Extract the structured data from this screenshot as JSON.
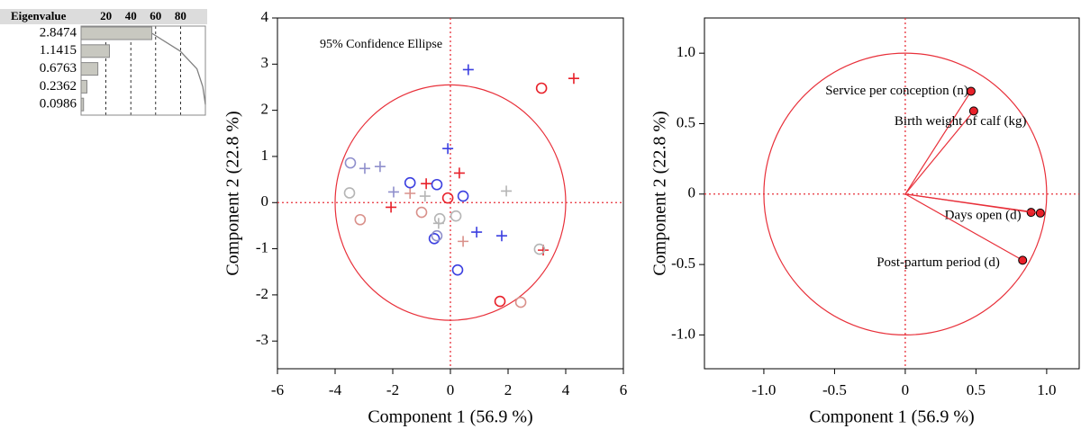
{
  "chart_data": [
    {
      "type": "eigen-bar",
      "header": "Eigenvalue",
      "eigenvalues": [
        2.8474,
        1.1415,
        0.6763,
        0.2362,
        0.0986
      ],
      "values": [
        56.9,
        22.8,
        13.5,
        4.7,
        2.0
      ],
      "cumulative": [
        56.9,
        79.7,
        93.2,
        97.9,
        100
      ],
      "xlim": [
        0,
        100
      ],
      "xticks": [
        20,
        40,
        60,
        80
      ],
      "color": "#c8c8c0",
      "line_color": "#808080"
    },
    {
      "type": "scatter",
      "x_label": "Component 1  (56.9 %)",
      "y_label": "Component 2  (22.8 %)",
      "annotation": "95% Confidence Ellipse",
      "ellipse": [
        4.0,
        2.55
      ],
      "ellipse_color": "#e8303a",
      "xlim": [
        -6,
        6
      ],
      "xticks": [
        -6,
        -4,
        -2,
        0,
        2,
        4,
        6
      ],
      "ylim": [
        -3.6,
        4
      ],
      "yticks": [
        -3,
        -2,
        -1,
        0,
        1,
        2,
        3,
        4
      ],
      "series": [
        {
          "marker": "plus",
          "color": "#e8212a",
          "x": [
            4.28,
            0.31,
            -0.84,
            -2.06,
            3.22
          ],
          "values": [
            2.69,
            0.64,
            0.41,
            -0.1,
            -1.03
          ]
        },
        {
          "marker": "plus",
          "color": "#3b3fe0",
          "x": [
            0.62,
            -0.09,
            0.91,
            1.78
          ],
          "values": [
            2.88,
            1.17,
            -0.64,
            -0.72
          ]
        },
        {
          "marker": "plus",
          "color": "#8f8fcc",
          "x": [
            -2.97,
            -2.44,
            -1.97
          ],
          "values": [
            0.74,
            0.78,
            0.23
          ]
        },
        {
          "marker": "plus",
          "color": "#d9908a",
          "x": [
            -1.4,
            0.44
          ],
          "values": [
            0.2,
            -0.84
          ]
        },
        {
          "marker": "plus",
          "color": "#b5b5b5",
          "x": [
            -0.88,
            1.94,
            -0.41
          ],
          "values": [
            0.14,
            0.25,
            -0.45
          ]
        },
        {
          "marker": "circle",
          "color": "#e8212a",
          "x": [
            3.16,
            -0.09,
            1.72
          ],
          "values": [
            2.48,
            0.1,
            -2.14
          ]
        },
        {
          "marker": "circle",
          "color": "#3b3fe0",
          "x": [
            -1.4,
            -0.47,
            0.44,
            -0.56,
            0.25
          ],
          "values": [
            0.43,
            0.39,
            0.14,
            -0.78,
            -1.46
          ]
        },
        {
          "marker": "circle",
          "color": "#8f8fcc",
          "x": [
            -3.47,
            -0.47
          ],
          "values": [
            0.86,
            -0.72
          ]
        },
        {
          "marker": "circle",
          "color": "#d9908a",
          "x": [
            -1.0,
            -3.13,
            2.44
          ],
          "values": [
            -0.21,
            -0.37,
            -2.16
          ]
        },
        {
          "marker": "circle",
          "color": "#b5b5b5",
          "x": [
            -3.5,
            0.19,
            -0.37,
            3.09
          ],
          "values": [
            0.21,
            -0.29,
            -0.35,
            -1.01
          ]
        }
      ]
    },
    {
      "type": "loading",
      "x_label": "Component 1  (56.9 %)",
      "y_label": "Component 2  (22.8 %)",
      "xlim": [
        -1.42,
        1.23
      ],
      "xticks": [
        {
          "value": -1,
          "label": "-1.0"
        },
        -0.5,
        0,
        0.5,
        {
          "value": 1,
          "label": "1.0"
        }
      ],
      "ylim": [
        -1.24,
        1.25
      ],
      "yticks": [
        {
          "value": -1,
          "label": "-1.0"
        },
        -0.5,
        0,
        0.5,
        {
          "value": 1,
          "label": "1.0"
        }
      ],
      "circle": 1,
      "color": "#e8303a",
      "labels": [
        "Service per conception (n)",
        "Birth weight  of calf (kg)",
        "Days open (d)",
        null,
        "Post-partum period (d)"
      ],
      "x": [
        0.465,
        0.484,
        0.89,
        0.955,
        0.83
      ],
      "values": [
        0.73,
        0.59,
        -0.13,
        -0.135,
        -0.47
      ]
    }
  ]
}
